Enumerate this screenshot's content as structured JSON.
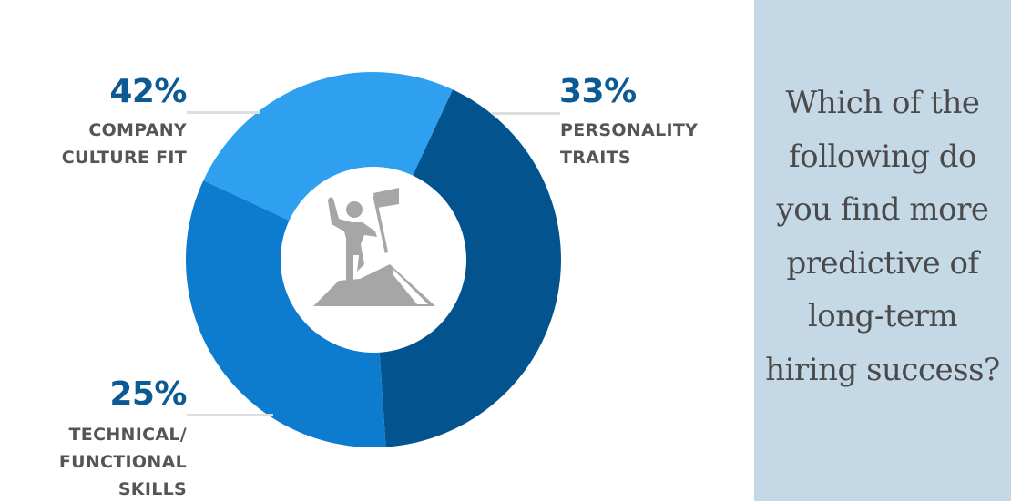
{
  "chart_data": {
    "type": "pie",
    "donut": true,
    "categories": [
      "COMPANY CULTURE FIT",
      "PERSONALITY TRAITS",
      "TECHNICAL/ FUNCTIONAL SKILLS"
    ],
    "values": [
      42,
      33,
      25
    ],
    "data_labels": [
      "42%",
      "33%",
      "25%"
    ],
    "colors": [
      "#03548e",
      "#0d7ccf",
      "#2fa0f0"
    ],
    "center_icon": "person-on-mountain-with-flag-icon"
  },
  "labels": {
    "culture": {
      "pct": "42%",
      "line1": "COMPANY",
      "line2": "CULTURE FIT"
    },
    "personality": {
      "pct": "33%",
      "line1": "PERSONALITY",
      "line2": "TRAITS"
    },
    "technical": {
      "pct": "25%",
      "line1": "TECHNICAL/",
      "line2": "FUNCTIONAL",
      "line3": "SKILLS"
    }
  },
  "panel": {
    "question": "Which of the following do you find more predictive of long-term hiring success?",
    "background": "#c4d8e6"
  }
}
